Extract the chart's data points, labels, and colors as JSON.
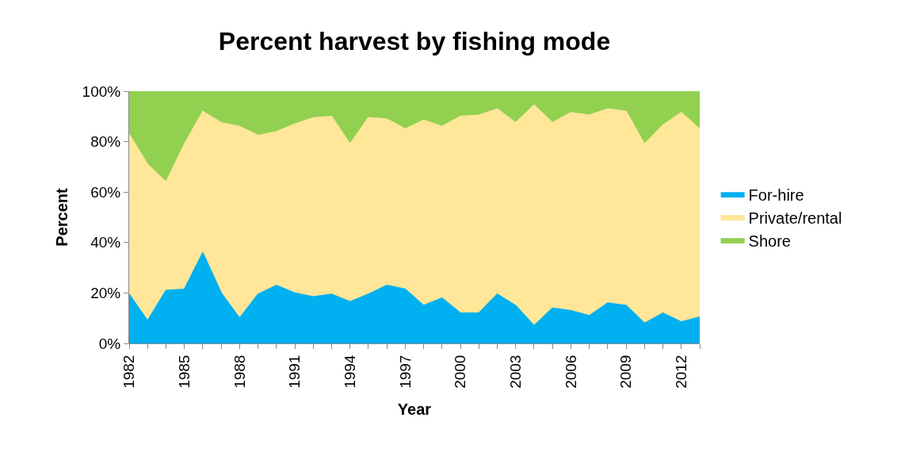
{
  "chart_data": {
    "type": "area",
    "title": "Percent harvest by fishing mode",
    "xlabel": "Year",
    "ylabel": "Percent",
    "stacked": true,
    "legend": "right",
    "categories": [
      "1982",
      null,
      null,
      "1985",
      null,
      null,
      "1988",
      null,
      null,
      "1991",
      null,
      null,
      "1994",
      null,
      null,
      "1997",
      null,
      null,
      "2000",
      null,
      null,
      "2003",
      null,
      null,
      "2006",
      null,
      null,
      "2009",
      null,
      null,
      "2012",
      null
    ],
    "ylim": [
      0,
      100
    ],
    "yticks": [
      {
        "value": 0,
        "label": "0%"
      },
      {
        "value": 20,
        "label": "20%"
      },
      {
        "value": 40,
        "label": "40%"
      },
      {
        "value": 60,
        "label": "60%"
      },
      {
        "value": 80,
        "label": "80%"
      },
      {
        "value": 100,
        "label": "100%"
      }
    ],
    "series": [
      {
        "name": "For-hire",
        "color": "#00b0f0",
        "values": [
          19.5,
          9,
          21,
          21.5,
          36,
          20,
          10,
          19.5,
          23,
          20,
          18.5,
          19.5,
          16.5,
          19.5,
          23,
          21.5,
          15,
          18,
          12,
          12,
          19.5,
          15,
          7,
          14,
          13,
          11,
          16,
          15,
          8,
          12,
          8.5,
          10.5
        ]
      },
      {
        "name": "Private/rental",
        "color": "#ffe699",
        "values": [
          63.5,
          62,
          43,
          57.5,
          56,
          67.5,
          76,
          63,
          61,
          67,
          71,
          70.5,
          62.5,
          70,
          66,
          63.5,
          73.5,
          68,
          78,
          78.5,
          73.5,
          72.5,
          87.5,
          73.5,
          78.5,
          79.5,
          77,
          77,
          71,
          74.5,
          83,
          74.5
        ]
      },
      {
        "name": "Shore",
        "color": "#92d050",
        "values": [
          17,
          29,
          36,
          21,
          8,
          12.5,
          14,
          17.5,
          16,
          13,
          10.5,
          10,
          21,
          10.5,
          11,
          15,
          11.5,
          14,
          10,
          9.5,
          7,
          12.5,
          5.5,
          12.5,
          8.5,
          9.5,
          7,
          8,
          21,
          13.5,
          8.5,
          15
        ]
      }
    ]
  }
}
